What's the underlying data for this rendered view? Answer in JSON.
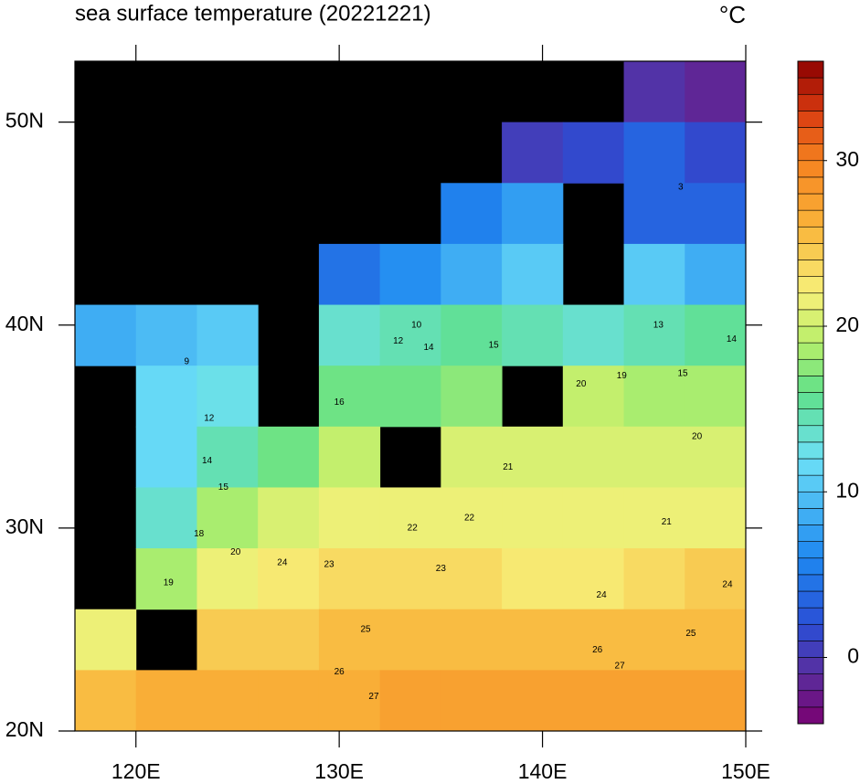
{
  "chart_data": {
    "type": "map",
    "title": "sea surface temperature (20221221)",
    "unit": "°C",
    "xlim": [
      117,
      150
    ],
    "ylim": [
      20,
      53
    ],
    "xticks": [
      {
        "value": 120,
        "label": "120E"
      },
      {
        "value": 130,
        "label": "130E"
      },
      {
        "value": 140,
        "label": "140E"
      },
      {
        "value": 150,
        "label": "150E"
      }
    ],
    "yticks": [
      {
        "value": 20,
        "label": "20N"
      },
      {
        "value": 30,
        "label": "30N"
      },
      {
        "value": 40,
        "label": "40N"
      },
      {
        "value": 50,
        "label": "50N"
      }
    ],
    "land_color": "#000000",
    "field": {
      "lon": [
        118.5,
        121.5,
        124.5,
        127.5,
        130.5,
        133.5,
        136.5,
        139.5,
        142.5,
        145.5,
        148.5
      ],
      "lat": [
        51.5,
        48.5,
        45.5,
        42.5,
        39.5,
        36.5,
        33.5,
        30.5,
        27.5,
        24.5,
        21.5
      ],
      "values": [
        [
          null,
          null,
          null,
          null,
          null,
          null,
          null,
          null,
          null,
          -1,
          -2
        ],
        [
          null,
          null,
          null,
          null,
          null,
          null,
          null,
          0,
          1,
          3,
          1
        ],
        [
          null,
          null,
          null,
          null,
          null,
          null,
          5,
          7,
          null,
          3,
          3
        ],
        [
          null,
          null,
          null,
          null,
          4,
          6,
          8,
          10,
          null,
          10,
          8
        ],
        [
          8,
          9,
          10,
          null,
          13,
          14,
          15,
          14,
          13,
          14,
          15
        ],
        [
          null,
          11,
          12,
          null,
          16,
          16,
          17,
          null,
          19,
          18,
          18
        ],
        [
          null,
          11,
          14,
          16,
          19,
          null,
          20,
          20,
          20,
          20,
          20
        ],
        [
          null,
          13,
          18,
          20,
          21,
          21,
          21,
          21,
          21,
          21,
          21
        ],
        [
          null,
          18,
          21,
          22,
          23,
          23,
          23,
          22,
          22,
          23,
          24
        ],
        [
          21,
          null,
          24,
          24,
          25,
          25,
          25,
          25,
          25,
          25,
          25
        ],
        [
          25,
          26,
          26,
          26,
          26,
          27,
          27,
          27,
          27,
          27,
          27
        ]
      ]
    },
    "contour_labels": [
      {
        "lon": 146.8,
        "lat": 46.8,
        "value": 3
      },
      {
        "lon": 122.5,
        "lat": 38.2,
        "value": 9
      },
      {
        "lon": 133.8,
        "lat": 40.0,
        "value": 10
      },
      {
        "lon": 123.6,
        "lat": 35.4,
        "value": 12
      },
      {
        "lon": 132.9,
        "lat": 39.2,
        "value": 12
      },
      {
        "lon": 145.7,
        "lat": 40.0,
        "value": 13
      },
      {
        "lon": 123.5,
        "lat": 33.3,
        "value": 14
      },
      {
        "lon": 134.4,
        "lat": 38.9,
        "value": 14
      },
      {
        "lon": 149.3,
        "lat": 39.3,
        "value": 14
      },
      {
        "lon": 124.3,
        "lat": 32.0,
        "value": 15
      },
      {
        "lon": 137.6,
        "lat": 39.0,
        "value": 15
      },
      {
        "lon": 146.9,
        "lat": 37.6,
        "value": 15
      },
      {
        "lon": 130.0,
        "lat": 36.2,
        "value": 16
      },
      {
        "lon": 123.1,
        "lat": 29.7,
        "value": 18
      },
      {
        "lon": 121.6,
        "lat": 27.3,
        "value": 19
      },
      {
        "lon": 143.9,
        "lat": 37.5,
        "value": 19
      },
      {
        "lon": 141.9,
        "lat": 37.1,
        "value": 20
      },
      {
        "lon": 124.9,
        "lat": 28.8,
        "value": 20
      },
      {
        "lon": 147.6,
        "lat": 34.5,
        "value": 20
      },
      {
        "lon": 138.3,
        "lat": 33.0,
        "value": 21
      },
      {
        "lon": 146.1,
        "lat": 30.3,
        "value": 21
      },
      {
        "lon": 136.4,
        "lat": 30.5,
        "value": 22
      },
      {
        "lon": 133.6,
        "lat": 30.0,
        "value": 22
      },
      {
        "lon": 135.0,
        "lat": 28.0,
        "value": 23
      },
      {
        "lon": 129.5,
        "lat": 28.2,
        "value": 23
      },
      {
        "lon": 127.2,
        "lat": 28.3,
        "value": 24
      },
      {
        "lon": 142.9,
        "lat": 26.7,
        "value": 24
      },
      {
        "lon": 149.1,
        "lat": 27.2,
        "value": 24
      },
      {
        "lon": 131.3,
        "lat": 25.0,
        "value": 25
      },
      {
        "lon": 147.3,
        "lat": 24.8,
        "value": 25
      },
      {
        "lon": 142.7,
        "lat": 24.0,
        "value": 26
      },
      {
        "lon": 130.0,
        "lat": 22.9,
        "value": 26
      },
      {
        "lon": 143.8,
        "lat": 23.2,
        "value": 27
      },
      {
        "lon": 131.7,
        "lat": 21.7,
        "value": 27
      }
    ],
    "colorbar": {
      "clim": [
        -4,
        36
      ],
      "step": 1,
      "ticks": [
        0,
        10,
        20,
        30
      ],
      "stops": [
        {
          "value": -4,
          "color": "#7a0070"
        },
        {
          "value": -1,
          "color": "#5a2d9e"
        },
        {
          "value": 2,
          "color": "#2a4fd6"
        },
        {
          "value": 6,
          "color": "#1e88f0"
        },
        {
          "value": 12,
          "color": "#6de0f7"
        },
        {
          "value": 16,
          "color": "#5fe08a"
        },
        {
          "value": 19,
          "color": "#b8ef6a"
        },
        {
          "value": 22,
          "color": "#f7f07a"
        },
        {
          "value": 26,
          "color": "#f9b43a"
        },
        {
          "value": 30,
          "color": "#f58220"
        },
        {
          "value": 33,
          "color": "#d83a10"
        },
        {
          "value": 36,
          "color": "#8b0000"
        }
      ]
    }
  }
}
